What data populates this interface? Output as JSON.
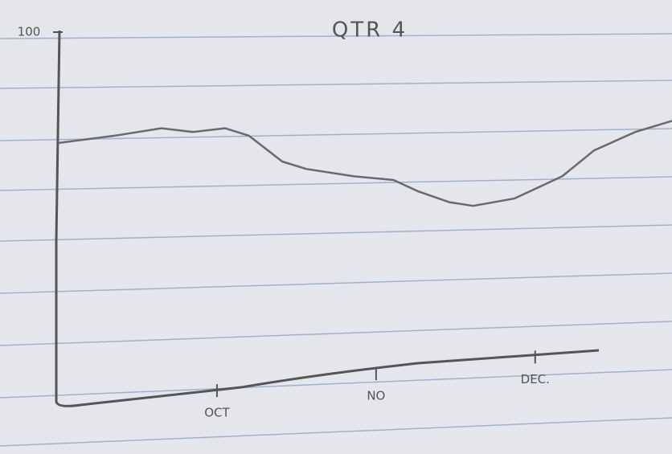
{
  "chart_data": {
    "type": "line",
    "title": "QTR 4",
    "x": [
      0,
      0.36,
      0.65,
      0.85,
      1.05,
      1.2,
      1.41,
      1.56,
      1.86,
      2.11,
      2.26,
      2.46,
      2.61,
      2.87,
      3.17,
      3.37,
      3.63,
      3.86
    ],
    "values": [
      70,
      72,
      74,
      73,
      74,
      72,
      65,
      63,
      61,
      60,
      57,
      54,
      53,
      55,
      61,
      68,
      73,
      76
    ],
    "color": "#6a6a6a",
    "xlim": [
      0,
      3.86
    ],
    "xticks": [
      {
        "value": 1,
        "label": "OCT"
      },
      {
        "value": 2,
        "label": "NO"
      },
      {
        "value": 3,
        "label": "DEC."
      }
    ],
    "ylim": [
      0,
      100
    ],
    "yticks": [
      100
    ]
  }
}
